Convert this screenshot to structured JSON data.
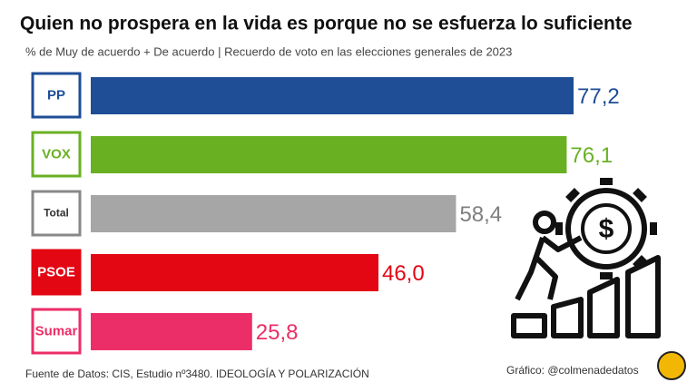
{
  "chart_data": {
    "type": "bar",
    "orientation": "horizontal",
    "title": "Quien no prospera en la vida es porque no se esfuerza lo suficiente",
    "subtitle": "% de Muy de acuerdo + De acuerdo  | Recuerdo de voto en las elecciones generales de 2023",
    "categories": [
      "PP",
      "VOX",
      "Total",
      "PSOE",
      "Sumar"
    ],
    "values": [
      77.2,
      76.1,
      58.4,
      46.0,
      25.8
    ],
    "value_labels": [
      "77,2",
      "76,1",
      "58,4",
      "46,0",
      "25,8"
    ],
    "colors": [
      "#1f4e96",
      "#6ab023",
      "#a6a6a6",
      "#e30613",
      "#ec2e68"
    ],
    "label_colors": [
      "#1f4e96",
      "#6ab023",
      "#7f7f7f",
      "#e30613",
      "#ec2e68"
    ],
    "source": "Fuente de Datos: CIS, Estudio nº3480. IDEOLOGÍA Y POLARIZACIÓN",
    "credit": "Gráfico: @colmenadedatos"
  }
}
